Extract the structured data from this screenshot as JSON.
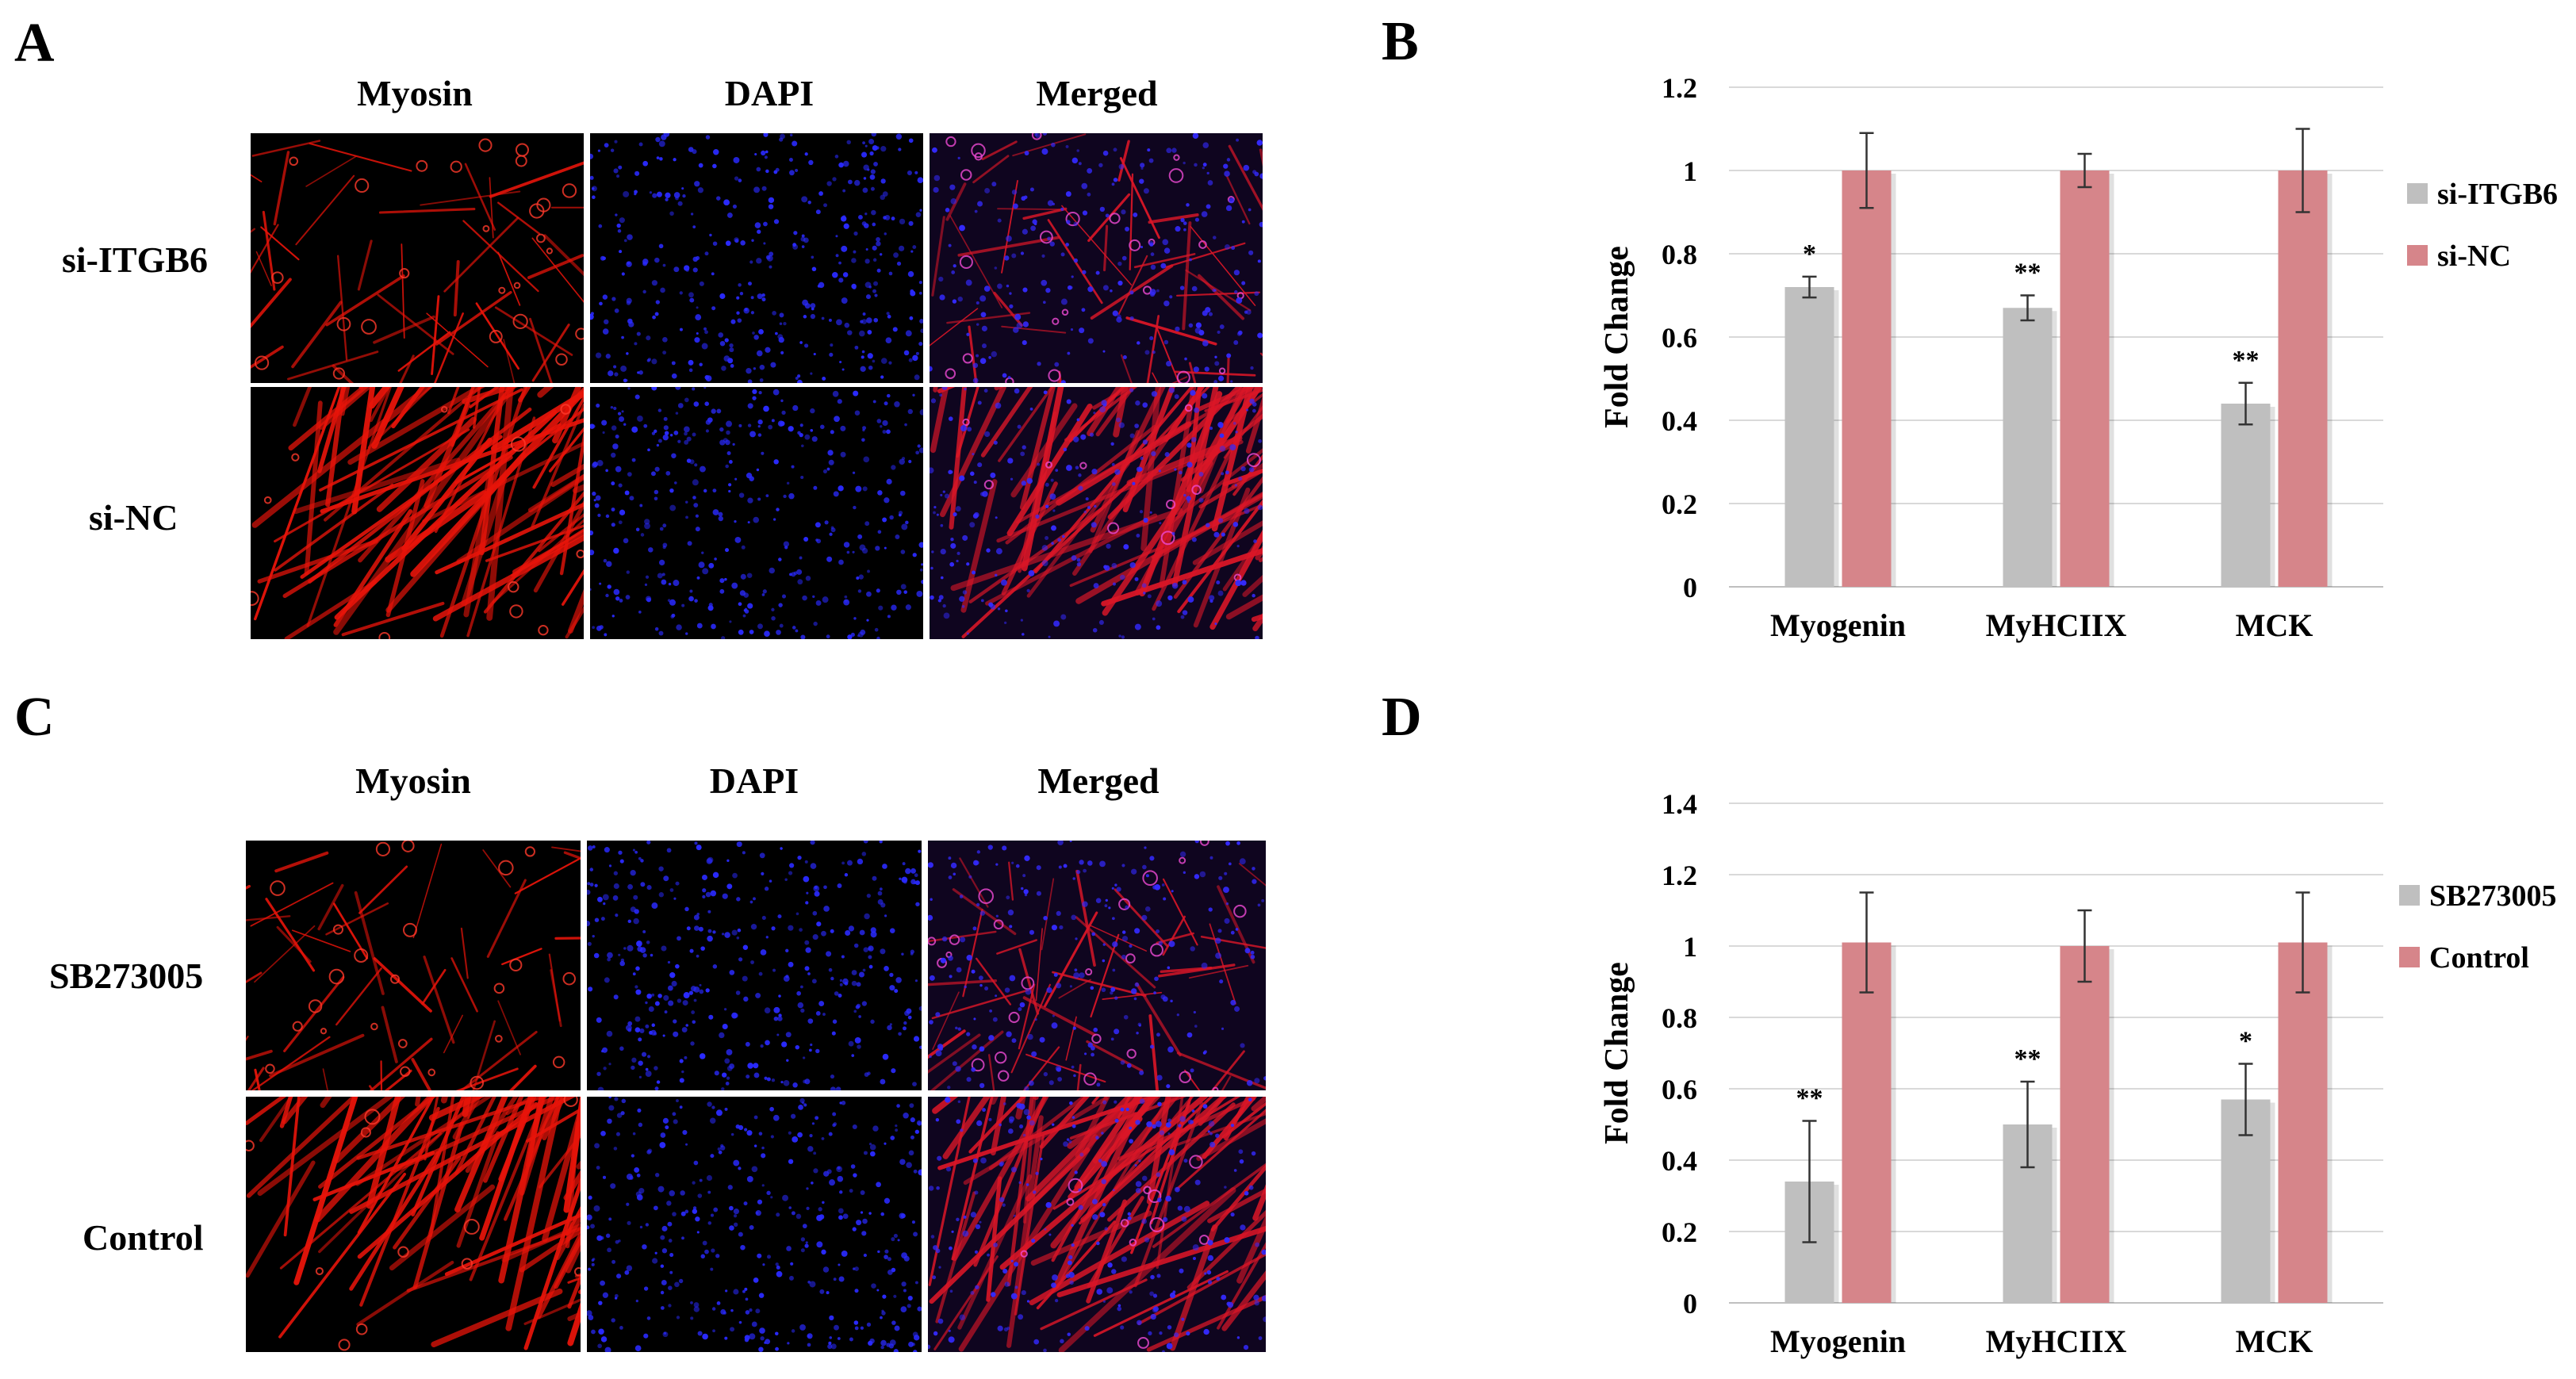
{
  "figure": {
    "panels": {
      "a": "A",
      "b": "B",
      "c": "C",
      "d": "D"
    },
    "grid_a": {
      "columns": [
        "Myosin",
        "DAPI",
        "Merged"
      ],
      "rows": [
        "si-ITGB6",
        "si-NC"
      ]
    },
    "grid_c": {
      "columns": [
        "Myosin",
        "DAPI",
        "Merged"
      ],
      "rows": [
        "SB273005",
        "Control"
      ]
    }
  },
  "colors": {
    "treatment": "#bfbfbf",
    "control": "#d6858a",
    "grid": "#d9d9d9",
    "myosin": "#e8140a",
    "dapi": "#2a2aff",
    "merged": "#c82e8a"
  },
  "chart_data": [
    {
      "type": "bar",
      "panel": "B",
      "title": "",
      "categories": [
        "Myogenin",
        "MyHCIIX",
        "MCK"
      ],
      "series": [
        {
          "name": "si-ITGB6",
          "values": [
            0.72,
            0.67,
            0.44
          ],
          "errors": [
            0.025,
            0.03,
            0.05
          ],
          "sig": [
            "*",
            "**",
            "**"
          ]
        },
        {
          "name": "si-NC",
          "values": [
            1.0,
            1.0,
            1.0
          ],
          "errors": [
            0.09,
            0.04,
            0.1
          ],
          "sig": [
            "",
            "",
            ""
          ]
        }
      ],
      "xlabel": "",
      "ylabel": "Fold Change",
      "ylim": [
        0,
        1.2
      ],
      "yticks": [
        "0",
        "0.2",
        "0.4",
        "0.6",
        "0.8",
        "1",
        "1.2"
      ],
      "grid": true,
      "legend": "right"
    },
    {
      "type": "bar",
      "panel": "D",
      "title": "",
      "categories": [
        "Myogenin",
        "MyHCIIX",
        "MCK"
      ],
      "series": [
        {
          "name": "SB273005",
          "values": [
            0.34,
            0.5,
            0.57
          ],
          "errors": [
            0.17,
            0.12,
            0.1
          ],
          "sig": [
            "**",
            "**",
            "*"
          ]
        },
        {
          "name": "Control",
          "values": [
            1.01,
            1.0,
            1.01
          ],
          "errors": [
            0.14,
            0.1,
            0.14
          ],
          "sig": [
            "",
            "",
            ""
          ]
        }
      ],
      "xlabel": "",
      "ylabel": "Fold Change",
      "ylim": [
        0,
        1.4
      ],
      "yticks": [
        "0",
        "0.2",
        "0.4",
        "0.6",
        "0.8",
        "1",
        "1.2",
        "1.4"
      ],
      "grid": true,
      "legend": "right"
    }
  ]
}
